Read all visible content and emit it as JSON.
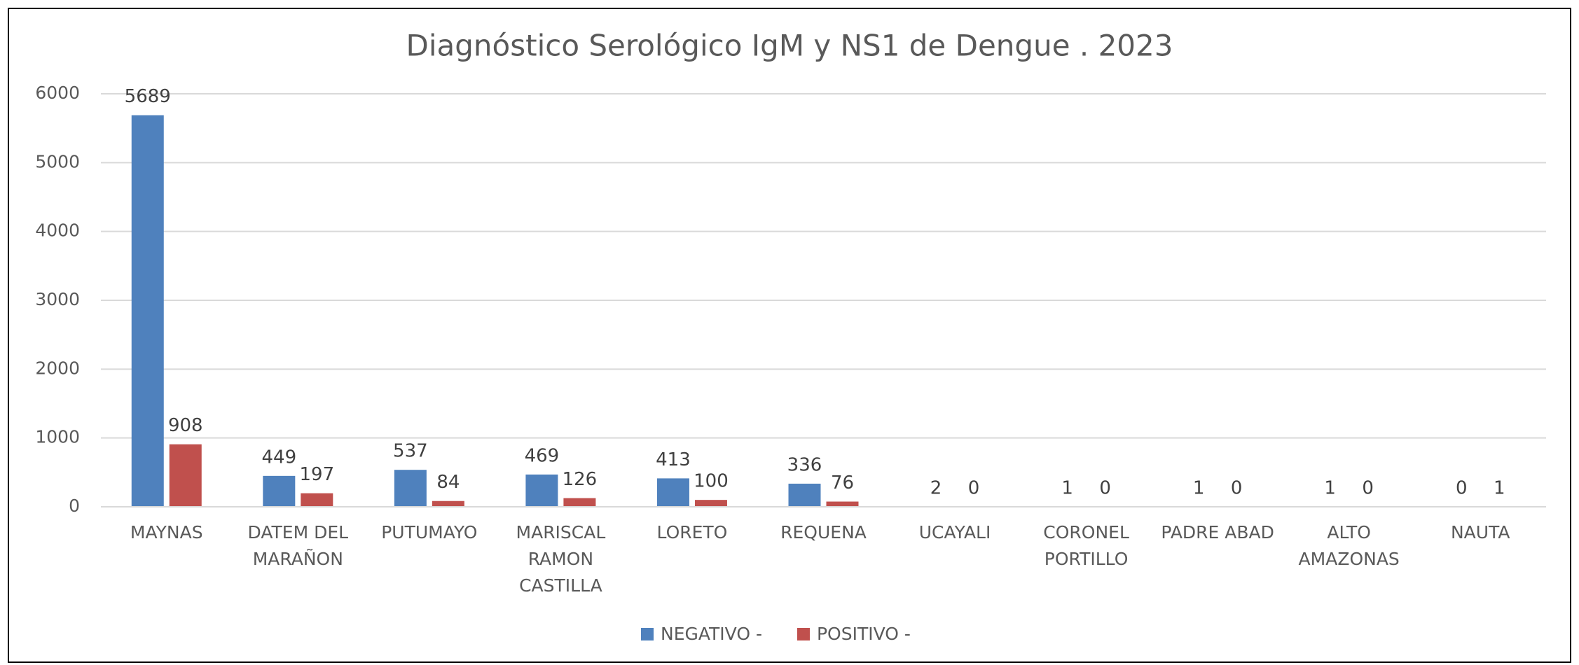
{
  "chart_data": {
    "type": "bar",
    "title": "Diagnóstico Serológico IgM y NS1 de Dengue . 2023",
    "categories": [
      "MAYNAS",
      "DATEM DEL MARAÑON",
      "PUTUMAYO",
      "MARISCAL RAMON CASTILLA",
      "LORETO",
      "REQUENA",
      "UCAYALI",
      "CORONEL PORTILLO",
      "PADRE ABAD",
      "ALTO AMAZONAS",
      "NAUTA"
    ],
    "series": [
      {
        "name": "NEGATIVO -",
        "color": "#4f81bd",
        "values": [
          5689,
          449,
          537,
          469,
          413,
          336,
          2,
          1,
          1,
          1,
          0
        ]
      },
      {
        "name": "POSITIVO -",
        "color": "#c0504d",
        "values": [
          908,
          197,
          84,
          126,
          100,
          76,
          0,
          0,
          0,
          0,
          1
        ]
      }
    ],
    "ylim": [
      0,
      6000
    ],
    "yticks": [
      0,
      1000,
      2000,
      3000,
      4000,
      5000,
      6000
    ],
    "grid": true,
    "legend": "bottom"
  }
}
